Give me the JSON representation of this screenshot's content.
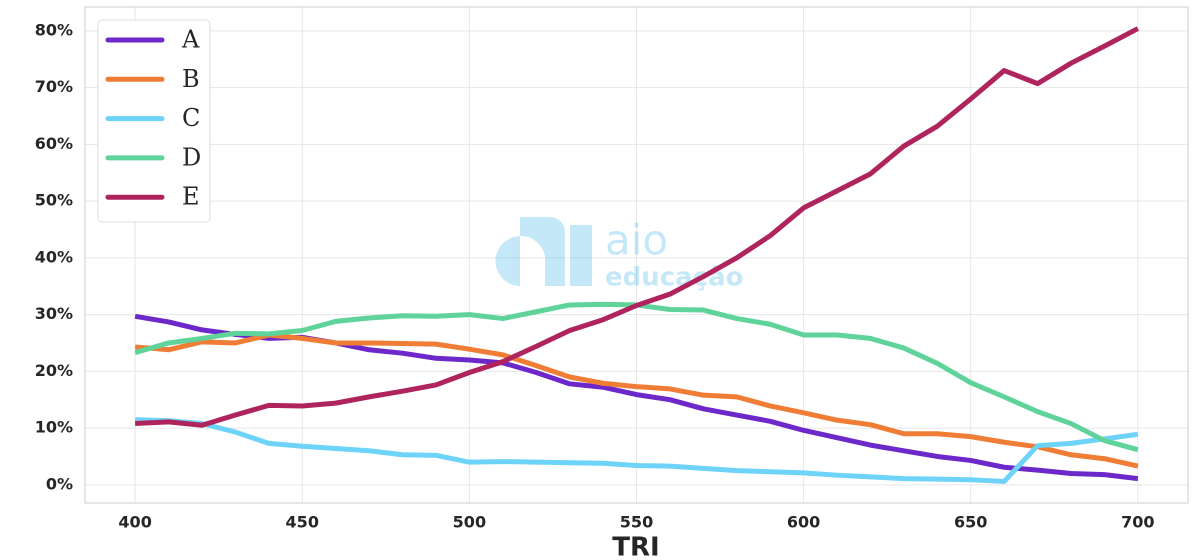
{
  "chart_data": {
    "type": "line",
    "x_label": "TRI",
    "x": [
      400,
      410,
      420,
      430,
      440,
      450,
      460,
      470,
      480,
      490,
      500,
      510,
      520,
      530,
      540,
      550,
      560,
      570,
      580,
      590,
      600,
      610,
      620,
      630,
      640,
      650,
      660,
      670,
      680,
      690,
      700
    ],
    "series": [
      {
        "name": "A",
        "color": "#6d28c9",
        "values": [
          29.7,
          28.7,
          27.3,
          26.5,
          25.8,
          26.0,
          25.0,
          23.8,
          23.2,
          22.3,
          22.0,
          21.5,
          19.8,
          17.8,
          17.2,
          15.9,
          15.0,
          13.4,
          12.3,
          11.2,
          9.6,
          8.3,
          7.0,
          6.0,
          5.0,
          4.3,
          3.1,
          2.6,
          2.0,
          1.8,
          1.1
        ]
      },
      {
        "name": "B",
        "color": "#f07d35",
        "values": [
          24.3,
          23.8,
          25.2,
          25.0,
          26.4,
          25.8,
          25.0,
          25.0,
          24.9,
          24.8,
          23.9,
          22.9,
          21.0,
          19.0,
          17.9,
          17.3,
          16.9,
          15.8,
          15.5,
          13.9,
          12.7,
          11.4,
          10.6,
          9.0,
          9.0,
          8.5,
          7.5,
          6.7,
          5.3,
          4.6,
          3.3
        ]
      },
      {
        "name": "C",
        "color": "#6dd3f8",
        "values": [
          11.5,
          11.3,
          10.8,
          9.3,
          7.3,
          6.8,
          6.4,
          6.0,
          5.3,
          5.2,
          4.0,
          4.1,
          4.0,
          3.9,
          3.8,
          3.4,
          3.3,
          2.9,
          2.5,
          2.3,
          2.1,
          1.7,
          1.4,
          1.1,
          1.0,
          0.9,
          0.6,
          6.9,
          7.3,
          8.1,
          8.9
        ]
      },
      {
        "name": "D",
        "color": "#5fd39a",
        "values": [
          23.3,
          25.0,
          25.8,
          26.7,
          26.6,
          27.2,
          28.8,
          29.4,
          29.8,
          29.7,
          30.0,
          29.3,
          30.5,
          31.7,
          31.8,
          31.7,
          30.9,
          30.8,
          29.3,
          28.3,
          26.4,
          26.4,
          25.8,
          24.1,
          21.4,
          18.0,
          15.5,
          12.9,
          10.8,
          7.8,
          6.2
        ]
      },
      {
        "name": "E",
        "color": "#b0245e",
        "values": [
          10.8,
          11.1,
          10.5,
          12.3,
          14.0,
          13.9,
          14.4,
          15.5,
          16.5,
          17.6,
          19.8,
          21.7,
          24.4,
          27.2,
          29.1,
          31.6,
          33.6,
          36.7,
          40.0,
          43.9,
          48.8,
          51.8,
          54.8,
          59.7,
          63.2,
          68.0,
          73.0,
          70.7,
          74.3,
          77.3,
          80.4
        ]
      }
    ],
    "xlim": [
      385,
      715
    ],
    "xticks": [
      400,
      450,
      500,
      550,
      600,
      650,
      700
    ],
    "ylim": [
      -3.2,
      84.2
    ],
    "yticks": [
      {
        "value": 0,
        "label": "0%"
      },
      {
        "value": 10,
        "label": "10%"
      },
      {
        "value": 20,
        "label": "20%"
      },
      {
        "value": 30,
        "label": "30%"
      },
      {
        "value": 40,
        "label": "40%"
      },
      {
        "value": 50,
        "label": "50%"
      },
      {
        "value": 60,
        "label": "60%"
      },
      {
        "value": 70,
        "label": "70%"
      },
      {
        "value": 80,
        "label": "80%"
      }
    ],
    "grid": true,
    "legend": "upper-left",
    "watermark": [
      "aio",
      "educação"
    ]
  }
}
